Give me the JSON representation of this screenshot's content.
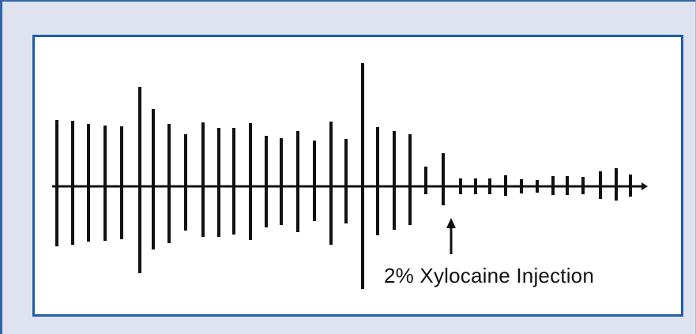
{
  "annotation": {
    "label": "2% Xylocaine Injection"
  },
  "colors": {
    "frame_background": "#dfe2ef",
    "frame_border": "#2e66a8",
    "panel_border": "#1f5ea8",
    "trace": "#111111"
  }
}
